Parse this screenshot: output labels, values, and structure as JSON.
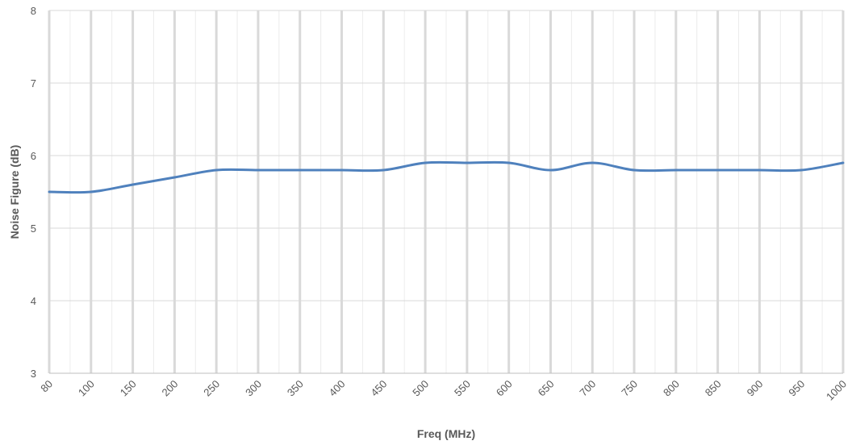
{
  "chart_data": {
    "type": "line",
    "xlabel": "Freq (MHz)",
    "ylabel": "Noise Figure (dB)",
    "ylim": [
      3,
      8
    ],
    "yticks": [
      "3",
      "4",
      "5",
      "6",
      "7",
      "8"
    ],
    "categories": [
      "80",
      "100",
      "150",
      "200",
      "250",
      "300",
      "350",
      "400",
      "450",
      "500",
      "550",
      "600",
      "650",
      "700",
      "750",
      "800",
      "850",
      "900",
      "950",
      "1000"
    ],
    "series": [
      {
        "values": [
          5.5,
          5.5,
          5.6,
          5.7,
          5.8,
          5.8,
          5.8,
          5.8,
          5.8,
          5.9,
          5.9,
          5.9,
          5.8,
          5.9,
          5.8,
          5.8,
          5.8,
          5.8,
          5.8,
          5.9
        ],
        "color": "#4f81bd"
      }
    ],
    "grid": true,
    "legend": "none"
  }
}
